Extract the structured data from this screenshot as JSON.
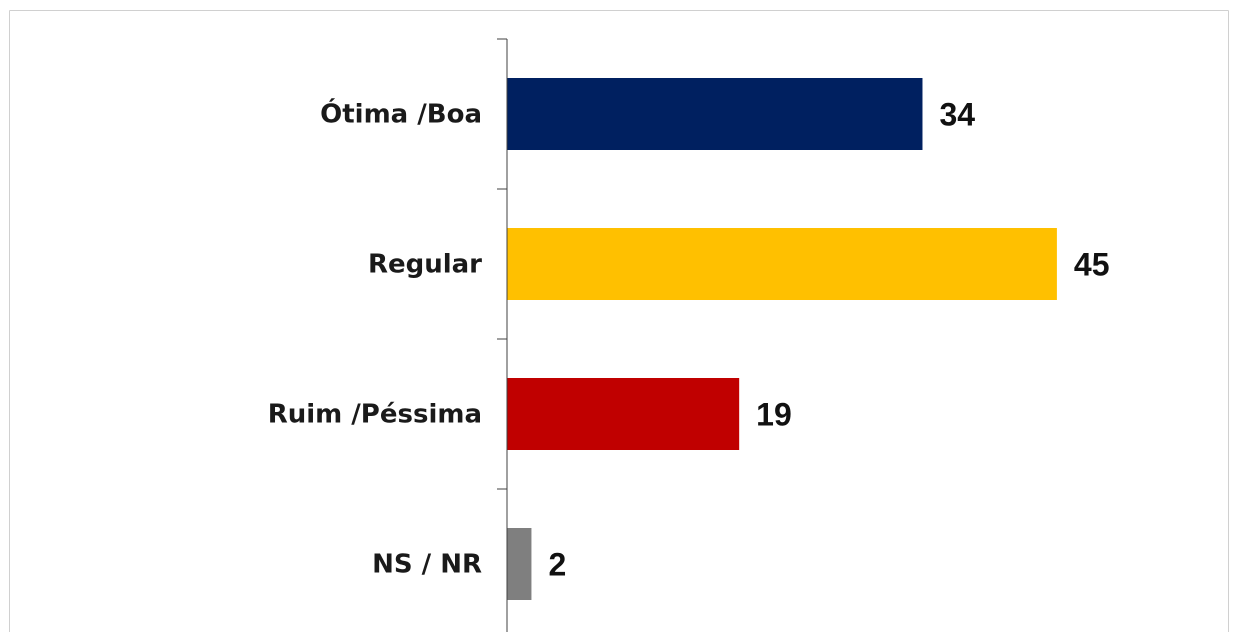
{
  "chart_data": {
    "type": "bar",
    "orientation": "horizontal",
    "categories": [
      "Ótima /Boa",
      "Regular",
      "Ruim /Péssima",
      "NS / NR"
    ],
    "values": [
      34,
      45,
      19,
      2
    ],
    "colors": [
      "#002060",
      "#ffc000",
      "#c00000",
      "#7f7f7f"
    ],
    "xlim": [
      0,
      50
    ]
  }
}
